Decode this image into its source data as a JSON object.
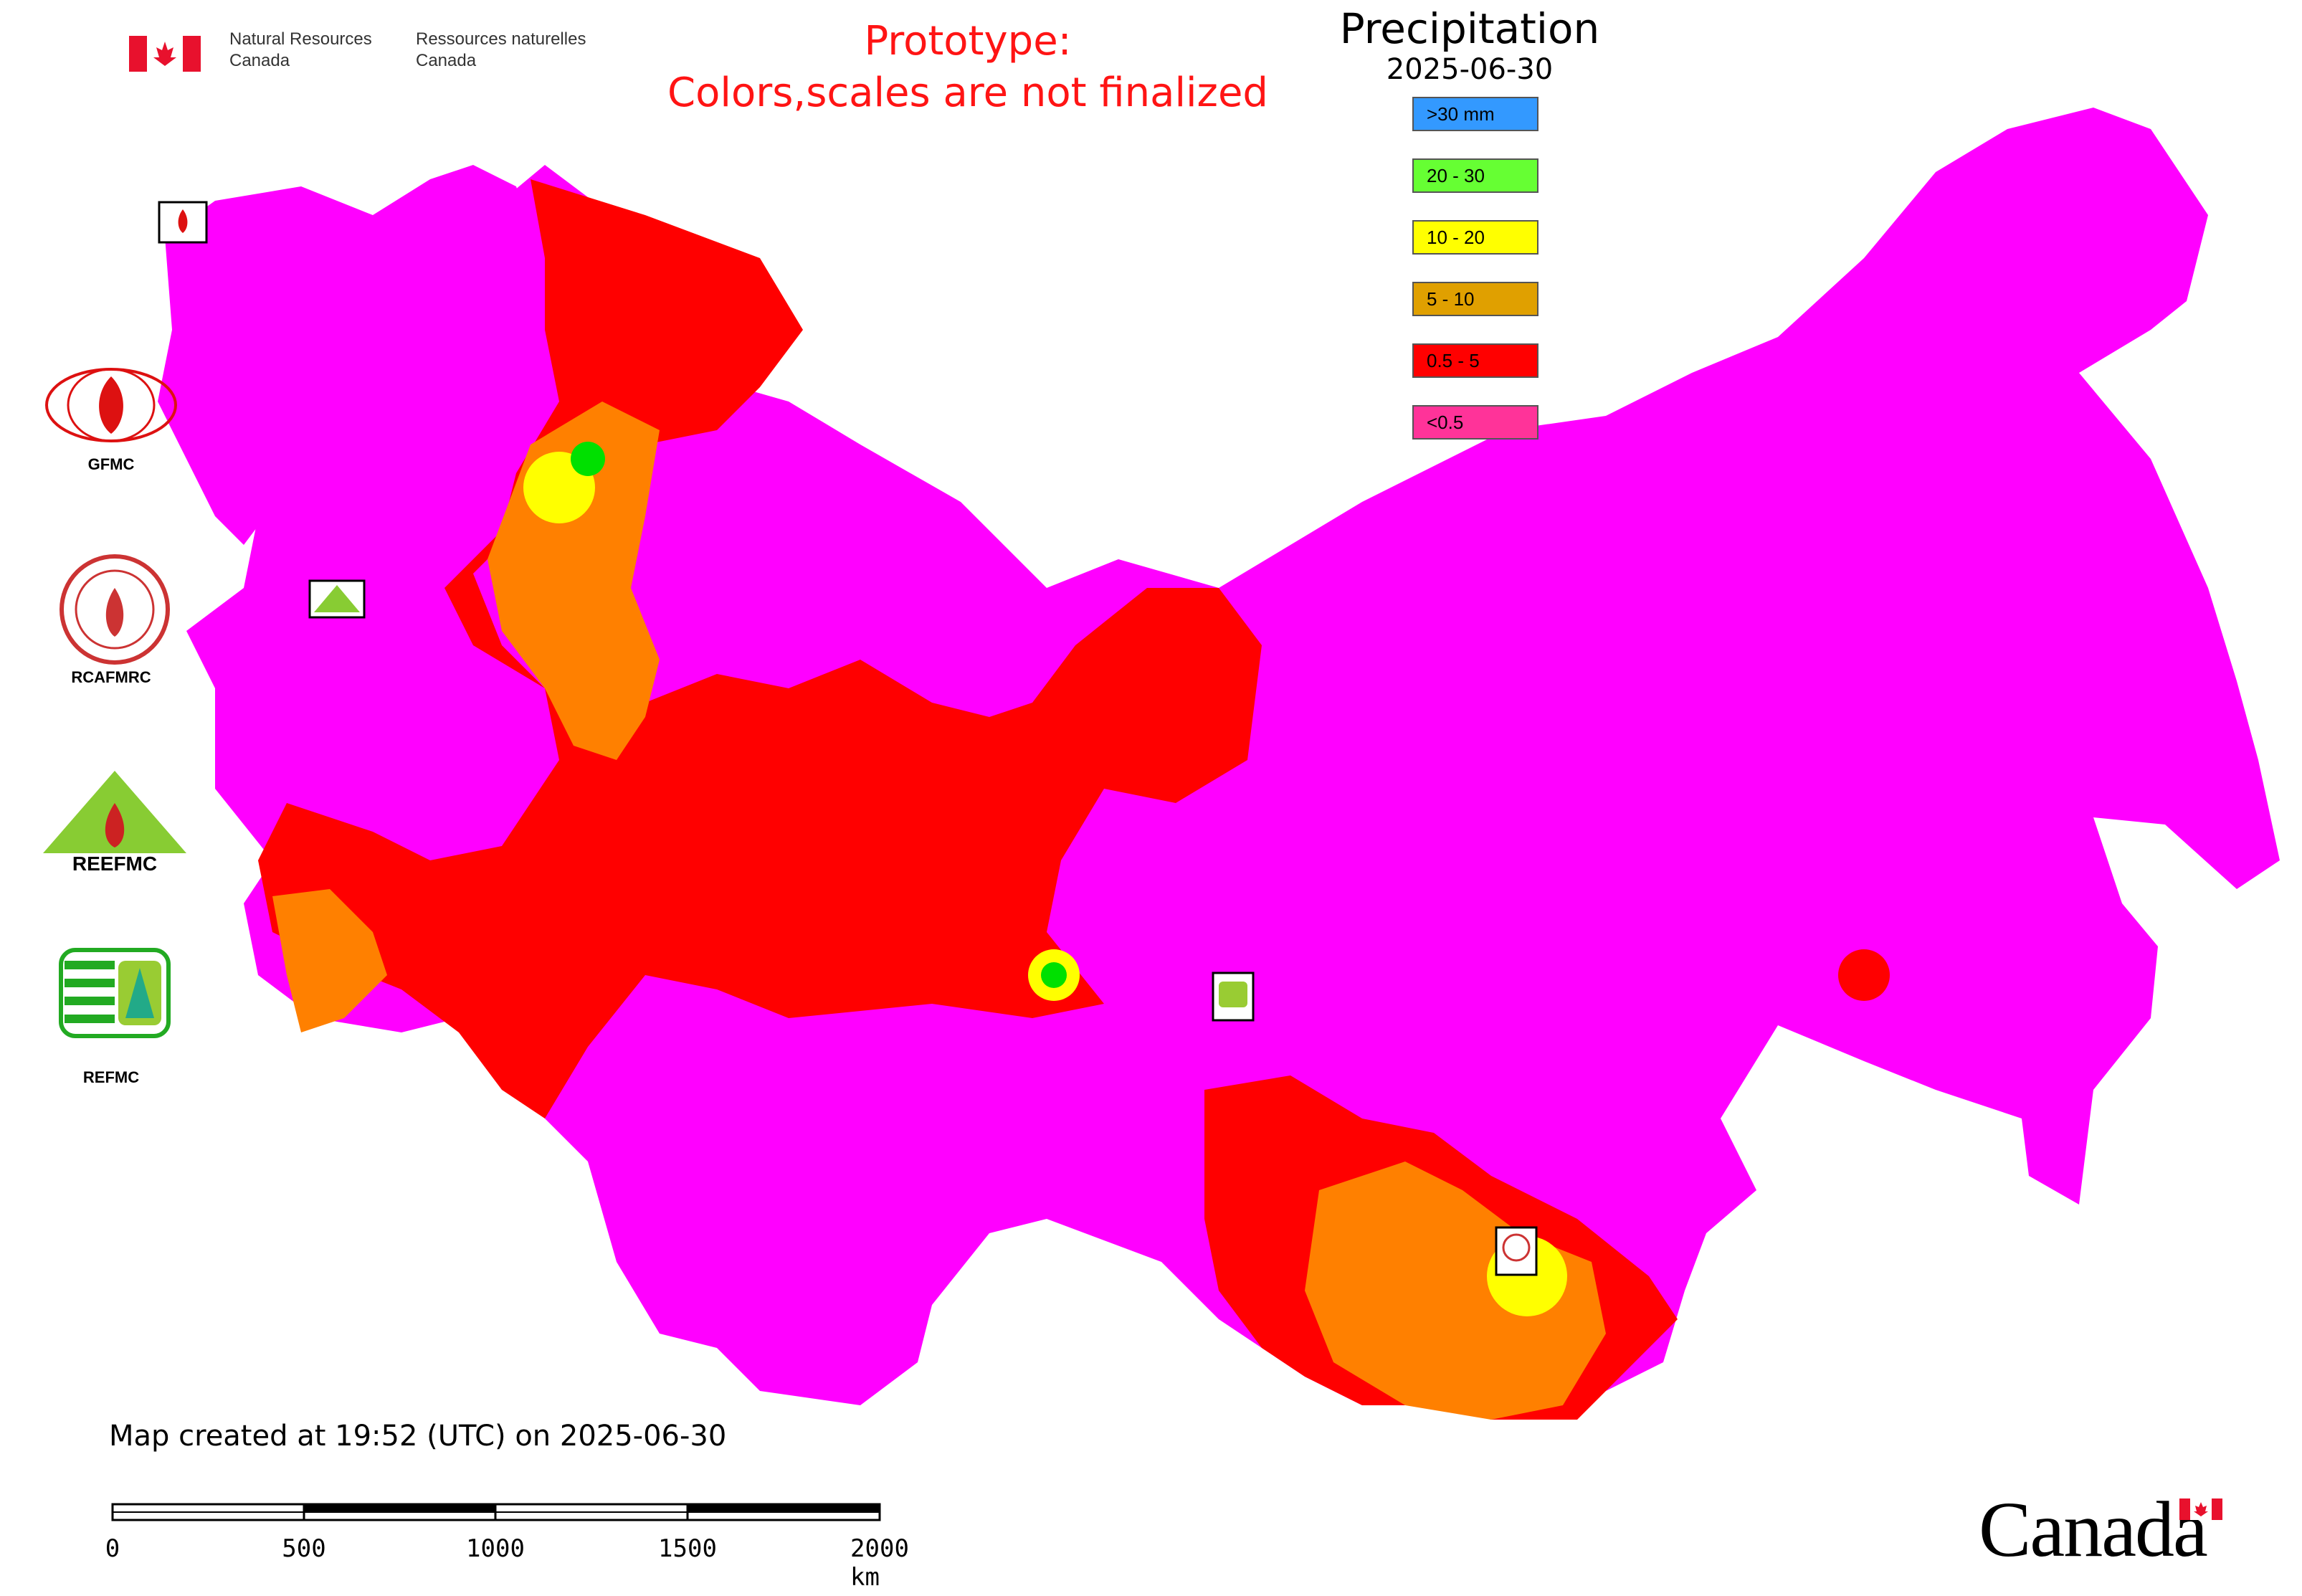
{
  "header": {
    "agency_en_line1": "Natural Resources",
    "agency_en_line2": "Canada",
    "agency_fr_line1": "Ressources naturelles",
    "agency_fr_line2": "Canada",
    "prototype_line1": "Prototype:",
    "prototype_line2": "Colors,scales are not finalized"
  },
  "legend": {
    "title": "Precipitation",
    "date": "2025-06-30",
    "items": [
      {
        "label": ">30 mm",
        "color": "#3399ff"
      },
      {
        "label": "20 - 30",
        "color": "#66ff33"
      },
      {
        "label": "10 - 20",
        "color": "#ffff00"
      },
      {
        "label": "5 - 10",
        "color": "#e0a000"
      },
      {
        "label": "0.5 - 5",
        "color": "#ff0000"
      },
      {
        "label": "<0.5",
        "color": "#ff3399"
      }
    ]
  },
  "map_colors": {
    "base": "#ff00ff",
    "low": "#ff0000",
    "mid": "#ff8000",
    "high": "#ffff00",
    "top": "#00e000"
  },
  "logos": {
    "gfmc": "GFMC",
    "rcafmrc": "RCAFMRC",
    "reefmc_text": "REEFMC",
    "refmc": "REFMC"
  },
  "footer": {
    "created": "Map created at 19:52 (UTC) on 2025-06-30",
    "canada_wordmark": "Canada",
    "scale_labels": [
      "0",
      "500",
      "1000",
      "1500",
      "2000 km"
    ]
  }
}
